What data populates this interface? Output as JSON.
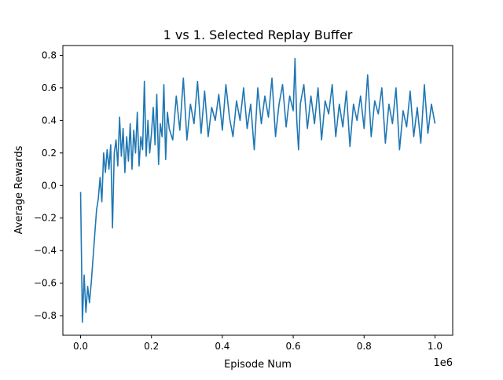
{
  "chart_data": {
    "type": "line",
    "title": "1 vs 1. Selected Replay Buffer",
    "xlabel": "Episode Num",
    "ylabel": "Average Rewards",
    "x_offset_label": "1e6",
    "xlim": [
      -0.05,
      1.05
    ],
    "ylim": [
      -0.92,
      0.86
    ],
    "x_ticks": [
      0.0,
      0.2,
      0.4,
      0.6,
      0.8,
      1.0
    ],
    "x_tick_labels": [
      "0.0",
      "0.2",
      "0.4",
      "0.6",
      "0.8",
      "1.0"
    ],
    "y_ticks": [
      -0.8,
      -0.6,
      -0.4,
      -0.2,
      0.0,
      0.2,
      0.4,
      0.6,
      0.8
    ],
    "y_tick_labels": [
      "−0.8",
      "−0.6",
      "−0.4",
      "−0.2",
      "0.0",
      "0.2",
      "0.4",
      "0.6",
      "0.8"
    ],
    "grid": false,
    "line_color": "#1f77b4",
    "series": [
      {
        "values_x": [
          0.0,
          0.005,
          0.01,
          0.015,
          0.02,
          0.025,
          0.03,
          0.035,
          0.04,
          0.045,
          0.05,
          0.055,
          0.06,
          0.065,
          0.07,
          0.075,
          0.08,
          0.085,
          0.09,
          0.095,
          0.1,
          0.105,
          0.11,
          0.115,
          0.12,
          0.125,
          0.13,
          0.135,
          0.14,
          0.145,
          0.15,
          0.155,
          0.16,
          0.165,
          0.17,
          0.175,
          0.18,
          0.185,
          0.19,
          0.195,
          0.2,
          0.205,
          0.21,
          0.215,
          0.22,
          0.225,
          0.23,
          0.235,
          0.24,
          0.245,
          0.25,
          0.26,
          0.27,
          0.28,
          0.29,
          0.3,
          0.31,
          0.32,
          0.33,
          0.34,
          0.35,
          0.36,
          0.37,
          0.38,
          0.39,
          0.4,
          0.41,
          0.42,
          0.43,
          0.44,
          0.45,
          0.46,
          0.47,
          0.48,
          0.49,
          0.5,
          0.51,
          0.52,
          0.53,
          0.54,
          0.55,
          0.56,
          0.57,
          0.58,
          0.59,
          0.6,
          0.605,
          0.61,
          0.615,
          0.62,
          0.63,
          0.64,
          0.65,
          0.66,
          0.67,
          0.68,
          0.69,
          0.7,
          0.71,
          0.72,
          0.73,
          0.74,
          0.75,
          0.76,
          0.77,
          0.78,
          0.79,
          0.8,
          0.81,
          0.82,
          0.83,
          0.84,
          0.85,
          0.86,
          0.87,
          0.88,
          0.89,
          0.9,
          0.91,
          0.92,
          0.93,
          0.94,
          0.95,
          0.96,
          0.97,
          0.98,
          0.99,
          1.0
        ],
        "values_y": [
          -0.04,
          -0.84,
          -0.55,
          -0.78,
          -0.62,
          -0.72,
          -0.6,
          -0.45,
          -0.3,
          -0.15,
          -0.08,
          0.05,
          -0.1,
          0.2,
          0.08,
          0.22,
          0.1,
          0.25,
          -0.26,
          0.2,
          0.28,
          0.12,
          0.42,
          0.18,
          0.35,
          0.08,
          0.3,
          0.15,
          0.38,
          0.1,
          0.34,
          0.2,
          0.45,
          0.12,
          0.3,
          0.22,
          0.64,
          0.18,
          0.4,
          0.2,
          0.32,
          0.48,
          0.25,
          0.56,
          0.13,
          0.38,
          0.3,
          0.62,
          0.16,
          0.45,
          0.35,
          0.28,
          0.55,
          0.34,
          0.66,
          0.28,
          0.5,
          0.38,
          0.64,
          0.32,
          0.58,
          0.3,
          0.48,
          0.4,
          0.56,
          0.34,
          0.62,
          0.42,
          0.3,
          0.52,
          0.4,
          0.6,
          0.35,
          0.5,
          0.22,
          0.6,
          0.38,
          0.55,
          0.42,
          0.66,
          0.3,
          0.5,
          0.62,
          0.36,
          0.55,
          0.46,
          0.78,
          0.4,
          0.22,
          0.5,
          0.62,
          0.35,
          0.55,
          0.38,
          0.6,
          0.28,
          0.52,
          0.44,
          0.62,
          0.3,
          0.5,
          0.36,
          0.58,
          0.24,
          0.5,
          0.4,
          0.55,
          0.35,
          0.68,
          0.3,
          0.52,
          0.44,
          0.6,
          0.26,
          0.5,
          0.38,
          0.6,
          0.22,
          0.46,
          0.36,
          0.58,
          0.3,
          0.48,
          0.26,
          0.62,
          0.32,
          0.5,
          0.38
        ]
      }
    ]
  }
}
